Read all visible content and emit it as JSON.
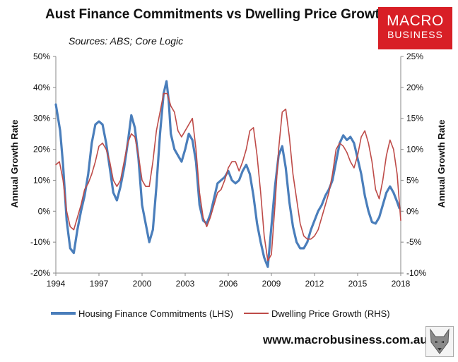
{
  "title": "Aust Finance Commitments vs Dwelling Price Growth",
  "subtitle": "Sources: ABS; Core Logic",
  "logo": {
    "line1": "MACRO",
    "line2": "BUSINESS"
  },
  "footer": "www.macrobusiness.com.au",
  "colors": {
    "lhs_series": "#4a7ebb",
    "rhs_series": "#be4b48",
    "logo_bg": "#d81f26"
  },
  "chart_data": {
    "type": "line",
    "ylabel_left": "Annual Growth Rate",
    "ylabel_right": "Annual Growth Rate",
    "xlim": [
      1994,
      2018
    ],
    "ylim_left": [
      -20,
      50
    ],
    "ylim_right": [
      -10,
      25
    ],
    "x_ticks": [
      "1994",
      "1997",
      "2000",
      "2003",
      "2006",
      "2009",
      "2012",
      "2015",
      "2018"
    ],
    "y_ticks_left": [
      "-20%",
      "-10%",
      "0%",
      "10%",
      "20%",
      "30%",
      "40%",
      "50%"
    ],
    "y_ticks_right": [
      "-10%",
      "-5%",
      "0%",
      "5%",
      "10%",
      "15%",
      "20%",
      "25%"
    ],
    "grid": false,
    "legend_position": "bottom",
    "series": [
      {
        "name": "Housing Finance Commitments (LHS)",
        "axis": "left",
        "points": [
          [
            1994.0,
            34.5
          ],
          [
            1994.3,
            26
          ],
          [
            1994.5,
            15
          ],
          [
            1994.75,
            -3
          ],
          [
            1995.0,
            -12
          ],
          [
            1995.25,
            -13.5
          ],
          [
            1995.5,
            -6
          ],
          [
            1995.75,
            0
          ],
          [
            1996.0,
            5
          ],
          [
            1996.25,
            12
          ],
          [
            1996.5,
            22
          ],
          [
            1996.75,
            28
          ],
          [
            1997.0,
            29
          ],
          [
            1997.25,
            28
          ],
          [
            1997.5,
            22
          ],
          [
            1997.75,
            14
          ],
          [
            1998.0,
            6
          ],
          [
            1998.25,
            3.5
          ],
          [
            1998.5,
            8
          ],
          [
            1998.75,
            14
          ],
          [
            1999.0,
            22
          ],
          [
            1999.25,
            31
          ],
          [
            1999.5,
            27
          ],
          [
            1999.75,
            17
          ],
          [
            2000.0,
            2
          ],
          [
            2000.25,
            -4
          ],
          [
            2000.5,
            -10
          ],
          [
            2000.75,
            -6
          ],
          [
            2001.0,
            8
          ],
          [
            2001.25,
            25
          ],
          [
            2001.5,
            38
          ],
          [
            2001.7,
            42
          ],
          [
            2001.85,
            36
          ],
          [
            2002.0,
            25
          ],
          [
            2002.25,
            20
          ],
          [
            2002.5,
            18
          ],
          [
            2002.75,
            16
          ],
          [
            2003.0,
            20
          ],
          [
            2003.25,
            25
          ],
          [
            2003.5,
            23
          ],
          [
            2003.75,
            16
          ],
          [
            2004.0,
            2
          ],
          [
            2004.25,
            -3
          ],
          [
            2004.5,
            -4
          ],
          [
            2004.75,
            -1
          ],
          [
            2005.0,
            4
          ],
          [
            2005.25,
            9
          ],
          [
            2005.5,
            10
          ],
          [
            2005.75,
            11
          ],
          [
            2006.0,
            13
          ],
          [
            2006.25,
            10
          ],
          [
            2006.5,
            9
          ],
          [
            2006.75,
            10
          ],
          [
            2007.0,
            13
          ],
          [
            2007.25,
            15
          ],
          [
            2007.5,
            12
          ],
          [
            2007.75,
            5
          ],
          [
            2008.0,
            -4
          ],
          [
            2008.25,
            -10
          ],
          [
            2008.5,
            -15
          ],
          [
            2008.75,
            -18
          ],
          [
            2009.0,
            -5
          ],
          [
            2009.25,
            8
          ],
          [
            2009.5,
            18
          ],
          [
            2009.75,
            21
          ],
          [
            2010.0,
            14
          ],
          [
            2010.25,
            3
          ],
          [
            2010.5,
            -5
          ],
          [
            2010.75,
            -10
          ],
          [
            2011.0,
            -12
          ],
          [
            2011.25,
            -12
          ],
          [
            2011.5,
            -10
          ],
          [
            2011.75,
            -6
          ],
          [
            2012.0,
            -3
          ],
          [
            2012.25,
            0
          ],
          [
            2012.5,
            2
          ],
          [
            2012.75,
            5
          ],
          [
            2013.0,
            7
          ],
          [
            2013.25,
            10
          ],
          [
            2013.5,
            16
          ],
          [
            2013.75,
            22
          ],
          [
            2014.0,
            24.5
          ],
          [
            2014.25,
            23
          ],
          [
            2014.5,
            24
          ],
          [
            2014.75,
            22
          ],
          [
            2015.0,
            17
          ],
          [
            2015.25,
            12
          ],
          [
            2015.5,
            5
          ],
          [
            2015.75,
            0
          ],
          [
            2016.0,
            -3.5
          ],
          [
            2016.25,
            -4
          ],
          [
            2016.5,
            -2
          ],
          [
            2016.75,
            2
          ],
          [
            2017.0,
            6
          ],
          [
            2017.25,
            8
          ],
          [
            2017.5,
            6
          ],
          [
            2017.75,
            3
          ],
          [
            2017.9,
            1
          ]
        ]
      },
      {
        "name": "Dwelling Price Growth (RHS)",
        "axis": "right",
        "points": [
          [
            1994.0,
            7.5
          ],
          [
            1994.25,
            8
          ],
          [
            1994.5,
            5
          ],
          [
            1994.75,
            0
          ],
          [
            1995.0,
            -2.5
          ],
          [
            1995.25,
            -3
          ],
          [
            1995.5,
            -1
          ],
          [
            1995.75,
            1
          ],
          [
            1996.0,
            3.5
          ],
          [
            1996.25,
            4.5
          ],
          [
            1996.5,
            6
          ],
          [
            1996.75,
            8
          ],
          [
            1997.0,
            10.5
          ],
          [
            1997.25,
            11
          ],
          [
            1997.5,
            10
          ],
          [
            1997.75,
            8
          ],
          [
            1998.0,
            5
          ],
          [
            1998.25,
            4
          ],
          [
            1998.5,
            5
          ],
          [
            1998.75,
            8
          ],
          [
            1999.0,
            11
          ],
          [
            1999.25,
            12.5
          ],
          [
            1999.5,
            12
          ],
          [
            1999.75,
            9
          ],
          [
            2000.0,
            5
          ],
          [
            2000.25,
            4
          ],
          [
            2000.5,
            4
          ],
          [
            2000.75,
            8
          ],
          [
            2001.0,
            13
          ],
          [
            2001.25,
            16
          ],
          [
            2001.5,
            19
          ],
          [
            2001.75,
            19
          ],
          [
            2002.0,
            17
          ],
          [
            2002.25,
            16
          ],
          [
            2002.5,
            13
          ],
          [
            2002.75,
            12
          ],
          [
            2003.0,
            13
          ],
          [
            2003.25,
            14
          ],
          [
            2003.5,
            15
          ],
          [
            2003.75,
            10
          ],
          [
            2004.0,
            3
          ],
          [
            2004.25,
            -1
          ],
          [
            2004.5,
            -2.5
          ],
          [
            2004.75,
            -1
          ],
          [
            2005.0,
            1
          ],
          [
            2005.25,
            3
          ],
          [
            2005.5,
            3.5
          ],
          [
            2005.75,
            5
          ],
          [
            2006.0,
            7
          ],
          [
            2006.25,
            8
          ],
          [
            2006.5,
            8
          ],
          [
            2006.75,
            6.5
          ],
          [
            2007.0,
            8
          ],
          [
            2007.25,
            10
          ],
          [
            2007.5,
            13
          ],
          [
            2007.75,
            13.5
          ],
          [
            2008.0,
            9
          ],
          [
            2008.25,
            3
          ],
          [
            2008.5,
            -4
          ],
          [
            2008.75,
            -8
          ],
          [
            2009.0,
            -7
          ],
          [
            2009.25,
            1
          ],
          [
            2009.5,
            10
          ],
          [
            2009.75,
            16
          ],
          [
            2010.0,
            16.5
          ],
          [
            2010.25,
            12
          ],
          [
            2010.5,
            6
          ],
          [
            2010.75,
            2
          ],
          [
            2011.0,
            -2
          ],
          [
            2011.25,
            -4
          ],
          [
            2011.5,
            -4.5
          ],
          [
            2011.75,
            -4.5
          ],
          [
            2012.0,
            -4
          ],
          [
            2012.25,
            -3
          ],
          [
            2012.5,
            -1
          ],
          [
            2012.75,
            1
          ],
          [
            2013.0,
            3
          ],
          [
            2013.25,
            6
          ],
          [
            2013.5,
            10
          ],
          [
            2013.75,
            11
          ],
          [
            2014.0,
            10.5
          ],
          [
            2014.25,
            9.5
          ],
          [
            2014.5,
            8
          ],
          [
            2014.75,
            7
          ],
          [
            2015.0,
            9
          ],
          [
            2015.25,
            12
          ],
          [
            2015.5,
            13
          ],
          [
            2015.75,
            11
          ],
          [
            2016.0,
            8
          ],
          [
            2016.25,
            3.5
          ],
          [
            2016.5,
            2
          ],
          [
            2016.75,
            5
          ],
          [
            2017.0,
            9
          ],
          [
            2017.25,
            11.5
          ],
          [
            2017.5,
            10
          ],
          [
            2017.75,
            6
          ],
          [
            2018.0,
            -1.5
          ]
        ]
      }
    ]
  }
}
